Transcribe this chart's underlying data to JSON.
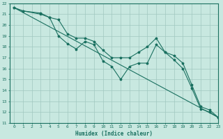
{
  "title": "",
  "xlabel": "Humidex (Indice chaleur)",
  "ylabel": "",
  "xlim": [
    -0.5,
    23
  ],
  "ylim": [
    11,
    22
  ],
  "xticks": [
    0,
    1,
    2,
    3,
    4,
    5,
    6,
    7,
    8,
    9,
    10,
    11,
    12,
    13,
    14,
    15,
    16,
    17,
    18,
    19,
    20,
    21,
    22,
    23
  ],
  "yticks": [
    11,
    12,
    13,
    14,
    15,
    16,
    17,
    18,
    19,
    20,
    21,
    22
  ],
  "bg_color": "#c8e8e0",
  "grid_color": "#a0c8c0",
  "line_color": "#1a7060",
  "lines": [
    {
      "x": [
        0,
        1,
        3,
        4,
        5,
        6,
        7,
        8,
        9,
        10,
        11,
        12,
        13,
        14,
        15,
        16,
        17,
        18,
        19,
        20,
        21,
        22,
        23
      ],
      "y": [
        21.6,
        21.3,
        21.1,
        20.7,
        19.0,
        18.3,
        17.8,
        18.5,
        18.2,
        16.7,
        16.2,
        15.0,
        16.2,
        16.5,
        16.5,
        18.2,
        17.5,
        16.8,
        16.0,
        14.2,
        12.3,
        12.0,
        11.5
      ],
      "marker": true
    },
    {
      "x": [
        0,
        1,
        3,
        4,
        5,
        6,
        7,
        8,
        9,
        10,
        11,
        12,
        13,
        14,
        15,
        16,
        17,
        18,
        19,
        20,
        21,
        22,
        23
      ],
      "y": [
        21.6,
        21.3,
        21.0,
        20.7,
        20.5,
        19.2,
        18.8,
        18.8,
        18.5,
        17.7,
        17.0,
        17.0,
        17.0,
        17.5,
        18.0,
        18.8,
        17.5,
        17.2,
        16.5,
        14.5,
        12.5,
        12.2,
        11.5
      ],
      "marker": true
    },
    {
      "x": [
        0,
        23
      ],
      "y": [
        21.6,
        11.5
      ],
      "marker": false
    }
  ]
}
